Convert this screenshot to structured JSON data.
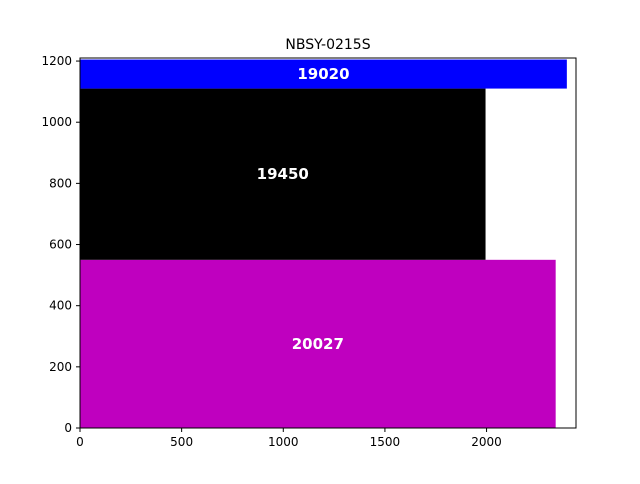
{
  "chart_data": {
    "type": "bar",
    "orientation": "horizontal-stacked-height",
    "title": "NBSY-0215S",
    "xlabel": "",
    "ylabel": "",
    "xlim": [
      0,
      2440
    ],
    "ylim": [
      0,
      1210
    ],
    "xticks": [
      0,
      500,
      1000,
      1500,
      2000
    ],
    "yticks": [
      0,
      200,
      400,
      600,
      800,
      1000,
      1200
    ],
    "grid": false,
    "legend": "none",
    "bars": [
      {
        "label": "20027",
        "x_start": 0,
        "x_end": 2340,
        "y_start": 0,
        "y_end": 550,
        "color": "#bf00bf"
      },
      {
        "label": "19450",
        "x_start": 0,
        "x_end": 1995,
        "y_start": 550,
        "y_end": 1110,
        "color": "#000000"
      },
      {
        "label": "19020",
        "x_start": 0,
        "x_end": 2395,
        "y_start": 1110,
        "y_end": 1205,
        "color": "#0000ff"
      }
    ]
  }
}
